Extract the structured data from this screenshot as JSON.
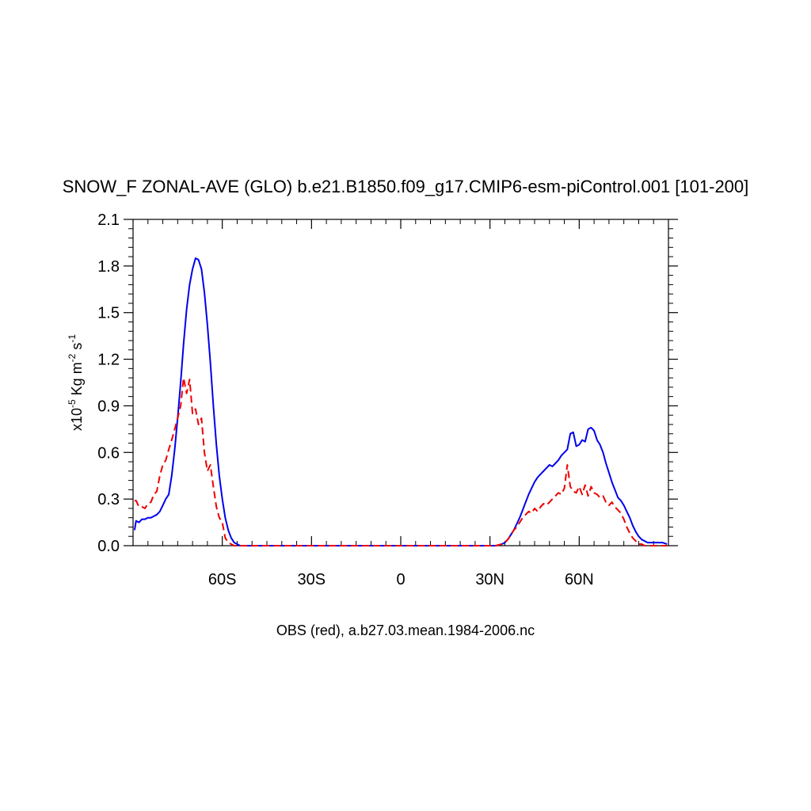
{
  "chart_data": {
    "type": "line",
    "title": "SNOW_F ZONAL-AVE (GLO) b.e21.B1850.f09_g17.CMIP6-esm-piControl.001 [101-200]",
    "xlabel": "OBS (red), a.b27.03.mean.1984-2006.nc",
    "ylabel": {
      "prefix": "x10",
      "exponent": "-5",
      "units": "Kg m",
      "units_exponent1": "-2",
      "units_s": "s",
      "units_exponent2": "-1"
    },
    "xlim": [
      -90,
      90
    ],
    "ylim": [
      0.0,
      2.1
    ],
    "xticks": [
      {
        "value": -60,
        "label": "60S"
      },
      {
        "value": -30,
        "label": "30S"
      },
      {
        "value": 0,
        "label": "0"
      },
      {
        "value": 30,
        "label": "30N"
      },
      {
        "value": 60,
        "label": "60N"
      }
    ],
    "yticks": [
      {
        "value": 0.0,
        "label": "0.0"
      },
      {
        "value": 0.3,
        "label": "0.3"
      },
      {
        "value": 0.6,
        "label": "0.6"
      },
      {
        "value": 0.9,
        "label": "0.9"
      },
      {
        "value": 1.2,
        "label": "1.2"
      },
      {
        "value": 1.5,
        "label": "1.5"
      },
      {
        "value": 1.8,
        "label": "1.8"
      },
      {
        "value": 2.1,
        "label": "2.1"
      }
    ],
    "grid": false,
    "series": [
      {
        "style": "solid",
        "color": "#0000ee",
        "x": [
          -89.5,
          -89,
          -88,
          -87,
          -86,
          -85,
          -84,
          -83,
          -82,
          -81,
          -80,
          -79,
          -78,
          -77,
          -76,
          -75,
          -74,
          -73,
          -72,
          -71,
          -70,
          -69,
          -68,
          -67,
          -66,
          -65,
          -64,
          -63,
          -62,
          -61,
          -60,
          -59,
          -58,
          -57,
          -56,
          -55,
          -54,
          -53,
          -52,
          -51,
          -50,
          -49,
          -48,
          -47,
          -46,
          -45,
          -44,
          -43,
          -42,
          -41,
          -40,
          -30,
          -20,
          -10,
          0,
          10,
          20,
          30,
          32,
          34,
          35,
          36,
          37,
          38,
          39,
          40,
          41,
          42,
          43,
          44,
          45,
          46,
          47,
          48,
          49,
          50,
          51,
          52,
          53,
          54,
          55,
          56,
          57,
          58,
          59,
          60,
          61,
          62,
          63,
          64,
          65,
          66,
          67,
          68,
          69,
          70,
          71,
          72,
          73,
          74,
          75,
          76,
          77,
          78,
          79,
          80,
          81,
          82,
          83,
          84,
          85,
          86,
          87,
          88,
          89.5
        ],
        "y": [
          0.1,
          0.16,
          0.15,
          0.17,
          0.17,
          0.18,
          0.18,
          0.19,
          0.2,
          0.22,
          0.26,
          0.3,
          0.33,
          0.45,
          0.62,
          0.82,
          1.05,
          1.3,
          1.52,
          1.68,
          1.78,
          1.85,
          1.84,
          1.78,
          1.63,
          1.42,
          1.18,
          0.9,
          0.65,
          0.45,
          0.3,
          0.18,
          0.1,
          0.05,
          0.02,
          0.01,
          0.0,
          0.0,
          0.0,
          0.0,
          0.0,
          0.0,
          0.0,
          0.0,
          0.0,
          0.0,
          0.0,
          0.0,
          0.0,
          0.0,
          0.0,
          0.0,
          0.0,
          0.0,
          0.0,
          0.0,
          0.0,
          0.0,
          0.0,
          0.01,
          0.02,
          0.04,
          0.07,
          0.1,
          0.14,
          0.18,
          0.23,
          0.28,
          0.33,
          0.37,
          0.41,
          0.44,
          0.46,
          0.48,
          0.5,
          0.52,
          0.51,
          0.53,
          0.55,
          0.58,
          0.6,
          0.62,
          0.72,
          0.73,
          0.64,
          0.65,
          0.68,
          0.67,
          0.75,
          0.76,
          0.74,
          0.68,
          0.65,
          0.6,
          0.53,
          0.47,
          0.41,
          0.36,
          0.31,
          0.29,
          0.26,
          0.22,
          0.18,
          0.13,
          0.09,
          0.06,
          0.04,
          0.03,
          0.02,
          0.02,
          0.02,
          0.02,
          0.02,
          0.02,
          0.01
        ]
      },
      {
        "style": "dashed",
        "color": "#ee0000",
        "x": [
          -89.5,
          -89,
          -88,
          -87,
          -86,
          -85,
          -84,
          -83,
          -82,
          -81,
          -80,
          -79,
          -78,
          -77,
          -76,
          -75,
          -74,
          -73,
          -72,
          -71,
          -70,
          -69,
          -68,
          -67,
          -66,
          -65,
          -64,
          -63,
          -62,
          -61,
          -60,
          -59,
          -58,
          -57,
          -56,
          -55,
          -54,
          -53,
          -52,
          -51,
          -50,
          -49,
          -48,
          -47,
          -46,
          -45,
          -44,
          -43,
          -42,
          -41,
          -40,
          -30,
          -20,
          -10,
          0,
          10,
          20,
          30,
          32,
          34,
          35,
          36,
          37,
          38,
          39,
          40,
          41,
          42,
          43,
          44,
          45,
          46,
          47,
          48,
          49,
          50,
          51,
          52,
          53,
          54,
          55,
          56,
          57,
          58,
          59,
          60,
          61,
          62,
          63,
          64,
          65,
          66,
          67,
          68,
          69,
          70,
          71,
          72,
          73,
          74,
          75,
          76,
          77,
          78,
          79,
          80,
          81,
          82,
          83,
          84,
          85,
          86,
          87,
          88,
          89.5
        ],
        "y": [
          0.29,
          0.29,
          0.25,
          0.25,
          0.24,
          0.27,
          0.28,
          0.33,
          0.35,
          0.45,
          0.52,
          0.55,
          0.62,
          0.68,
          0.75,
          0.82,
          0.9,
          1.08,
          0.98,
          1.07,
          0.85,
          0.88,
          0.78,
          0.82,
          0.6,
          0.48,
          0.52,
          0.38,
          0.25,
          0.18,
          0.15,
          0.05,
          0.02,
          0.01,
          0.0,
          0.0,
          0.0,
          0.0,
          0.0,
          0.0,
          0.0,
          0.0,
          0.0,
          0.0,
          0.0,
          0.0,
          0.0,
          0.0,
          0.0,
          0.0,
          0.0,
          0.0,
          0.0,
          0.0,
          0.0,
          0.0,
          0.0,
          0.0,
          0.0,
          0.01,
          0.02,
          0.04,
          0.07,
          0.1,
          0.12,
          0.15,
          0.18,
          0.2,
          0.22,
          0.21,
          0.24,
          0.22,
          0.25,
          0.27,
          0.26,
          0.28,
          0.3,
          0.32,
          0.34,
          0.33,
          0.37,
          0.52,
          0.38,
          0.35,
          0.34,
          0.38,
          0.33,
          0.39,
          0.32,
          0.38,
          0.34,
          0.33,
          0.31,
          0.32,
          0.28,
          0.26,
          0.28,
          0.25,
          0.23,
          0.21,
          0.17,
          0.12,
          0.08,
          0.05,
          0.03,
          0.01,
          0.01,
          0.0,
          0.0,
          0.0,
          0.0,
          0.0,
          0.0,
          0.0,
          0.0
        ]
      }
    ]
  }
}
